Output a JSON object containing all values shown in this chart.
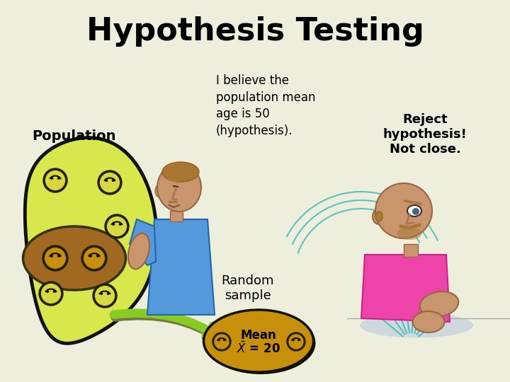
{
  "title": "Hypothesis Testing",
  "title_fontsize": 32,
  "title_fontweight": "bold",
  "background_color": "#eeeedd",
  "text_believe": "I believe the\npopulation mean\nage is 50\n(hypothesis).",
  "text_population": "Population",
  "text_random_sample": "Random\nsample",
  "text_mean_line1": "Mean",
  "text_mean_line2": "$\\bar{X}$ = 20",
  "text_reject": "Reject\nhypothesis!\nNot close.",
  "population_blob_color": "#d8e84c",
  "population_blob_outline": "#111111",
  "sample_blob_color": "#c8900a",
  "sample_blob_outline": "#111111",
  "inner_blob_color": "#a06820",
  "arrow_color": "#88cc22",
  "arrow_shadow": "#666633",
  "skin_color": "#c8956c",
  "blue_shirt": "#5599dd",
  "pink_shirt": "#ee44aa",
  "hair_color": "#aa7733",
  "shadow_color": "#aabbcc",
  "line_color": "#44bbbb",
  "figure_width": 7.2,
  "figure_height": 5.4,
  "dpi": 100
}
